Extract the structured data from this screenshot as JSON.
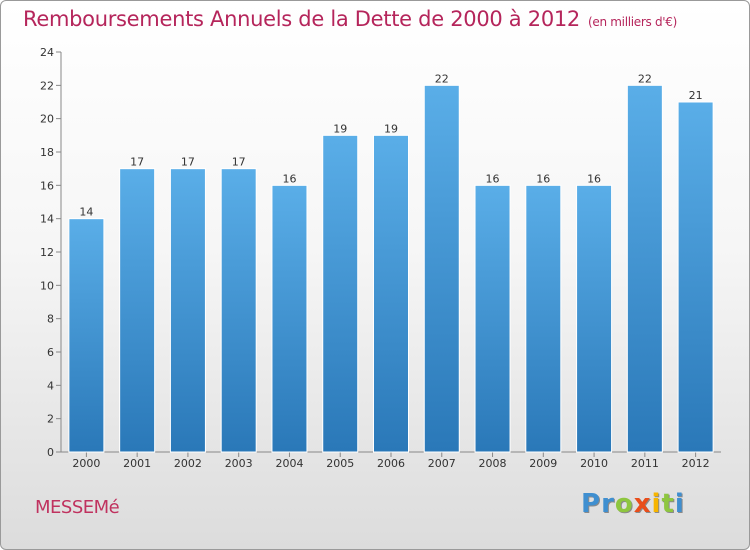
{
  "header": {
    "title": "Remboursements Annuels de la Dette de 2000 à 2012",
    "subtitle": "(en milliers d'€)"
  },
  "footer": {
    "city": "MESSEMé",
    "logo_letters": [
      "P",
      "r",
      "o",
      "x",
      "i",
      "t",
      "i"
    ]
  },
  "colors": {
    "title": "#b5255b",
    "bar_top": "#5aaee8",
    "bar_bottom": "#2a78b8",
    "logo": [
      "#3f8fd0",
      "#3f8fd0",
      "#8ec63f",
      "#e94e1b",
      "#f7b500",
      "#8ec63f",
      "#3f8fd0"
    ]
  },
  "chart_data": {
    "type": "bar",
    "title": "Remboursements Annuels de la Dette de 2000 à 2012",
    "subtitle": "(en milliers d'€)",
    "xlabel": "",
    "ylabel": "",
    "categories": [
      "2000",
      "2001",
      "2002",
      "2003",
      "2004",
      "2005",
      "2006",
      "2007",
      "2008",
      "2009",
      "2010",
      "2011",
      "2012"
    ],
    "values": [
      14,
      17,
      17,
      17,
      16,
      19,
      19,
      22,
      16,
      16,
      16,
      22,
      21
    ],
    "ylim": [
      0,
      24
    ],
    "yticks": [
      0,
      2,
      4,
      6,
      8,
      10,
      12,
      14,
      16,
      18,
      20,
      22,
      24
    ],
    "grid": false,
    "data_labels": true
  }
}
